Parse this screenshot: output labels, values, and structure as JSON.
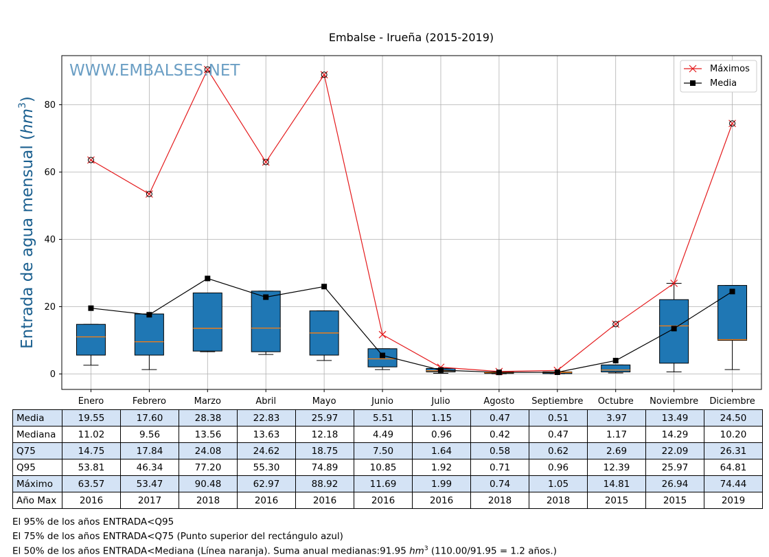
{
  "chart_data": {
    "type": "box",
    "title": "Embalse - Irueña (2015-2019)",
    "watermark": "WWW.EMBALSES.NET",
    "ylabel": "Entrada de agua mensual",
    "ylabel_unit": "hm",
    "ylabel_unit_exp": "3",
    "ylim": [
      -5,
      95
    ],
    "yticks": [
      0,
      20,
      40,
      60,
      80
    ],
    "grid": true,
    "legend_position": "top-right",
    "categories": [
      "Enero",
      "Febrero",
      "Marzo",
      "Abril",
      "Mayo",
      "Junio",
      "Julio",
      "Agosto",
      "Septiembre",
      "Octubre",
      "Noviembre",
      "Diciembre"
    ],
    "box": {
      "q25": [
        5.6,
        5.6,
        6.8,
        6.6,
        5.6,
        2.1,
        0.6,
        0.15,
        0.1,
        0.6,
        3.2,
        10.0
      ],
      "median": [
        11.02,
        9.56,
        13.56,
        13.63,
        12.18,
        4.49,
        0.96,
        0.42,
        0.47,
        1.17,
        14.29,
        10.2
      ],
      "q75": [
        14.75,
        17.84,
        24.08,
        24.62,
        18.75,
        7.5,
        1.64,
        0.58,
        0.62,
        2.69,
        22.09,
        26.31
      ],
      "whisker_low": [
        2.6,
        1.3,
        6.6,
        5.8,
        4.0,
        1.3,
        0.2,
        0.05,
        0.05,
        0.3,
        0.6,
        1.3
      ],
      "whisker_high": [
        14.75,
        17.84,
        24.08,
        24.62,
        18.75,
        7.5,
        1.64,
        0.58,
        0.62,
        2.69,
        26.94,
        26.31
      ],
      "color": "#1f77b4",
      "median_color": "#ff7f0e"
    },
    "series": [
      {
        "name": "Máximos",
        "color": "#e41a1c",
        "marker": "x",
        "values": [
          63.57,
          53.47,
          90.48,
          62.97,
          88.92,
          11.69,
          1.99,
          0.74,
          1.05,
          14.81,
          26.94,
          74.44
        ]
      },
      {
        "name": "Media",
        "color": "#000000",
        "marker": "square",
        "values": [
          19.55,
          17.6,
          28.38,
          22.83,
          25.97,
          5.51,
          1.15,
          0.47,
          0.51,
          3.97,
          13.49,
          24.5
        ]
      }
    ],
    "outliers": [
      63.57,
      53.47,
      90.48,
      62.97,
      88.92,
      null,
      null,
      null,
      null,
      14.81,
      null,
      74.44
    ],
    "table": {
      "rows": [
        {
          "label": "Media",
          "shaded": true,
          "values": [
            "19.55",
            "17.60",
            "28.38",
            "22.83",
            "25.97",
            "5.51",
            "1.15",
            "0.47",
            "0.51",
            "3.97",
            "13.49",
            "24.50"
          ]
        },
        {
          "label": "Mediana",
          "shaded": false,
          "values": [
            "11.02",
            "9.56",
            "13.56",
            "13.63",
            "12.18",
            "4.49",
            "0.96",
            "0.42",
            "0.47",
            "1.17",
            "14.29",
            "10.20"
          ]
        },
        {
          "label": "Q75",
          "shaded": true,
          "values": [
            "14.75",
            "17.84",
            "24.08",
            "24.62",
            "18.75",
            "7.50",
            "1.64",
            "0.58",
            "0.62",
            "2.69",
            "22.09",
            "26.31"
          ]
        },
        {
          "label": "Q95",
          "shaded": false,
          "values": [
            "53.81",
            "46.34",
            "77.20",
            "55.30",
            "74.89",
            "10.85",
            "1.92",
            "0.71",
            "0.96",
            "12.39",
            "25.97",
            "64.81"
          ]
        },
        {
          "label": "Máximo",
          "shaded": true,
          "values": [
            "63.57",
            "53.47",
            "90.48",
            "62.97",
            "88.92",
            "11.69",
            "1.99",
            "0.74",
            "1.05",
            "14.81",
            "26.94",
            "74.44"
          ]
        },
        {
          "label": "Año Max",
          "shaded": false,
          "values": [
            "2016",
            "2017",
            "2018",
            "2016",
            "2016",
            "2016",
            "2016",
            "2018",
            "2018",
            "2015",
            "2015",
            "2019"
          ]
        }
      ]
    }
  },
  "notes": {
    "line1": "El 95% de los años ENTRADA<Q95",
    "line2": "El 75% de los años ENTRADA<Q75 (Punto superior del rectángulo azul)",
    "line3_pre": "El 50% de los años ENTRADA<Mediana (Línea naranja). Suma anual medianas:91.95 ",
    "line3_unit": "hm",
    "line3_exp": "3",
    "line3_post": " (110.00/91.95 = 1.2 años.)"
  }
}
